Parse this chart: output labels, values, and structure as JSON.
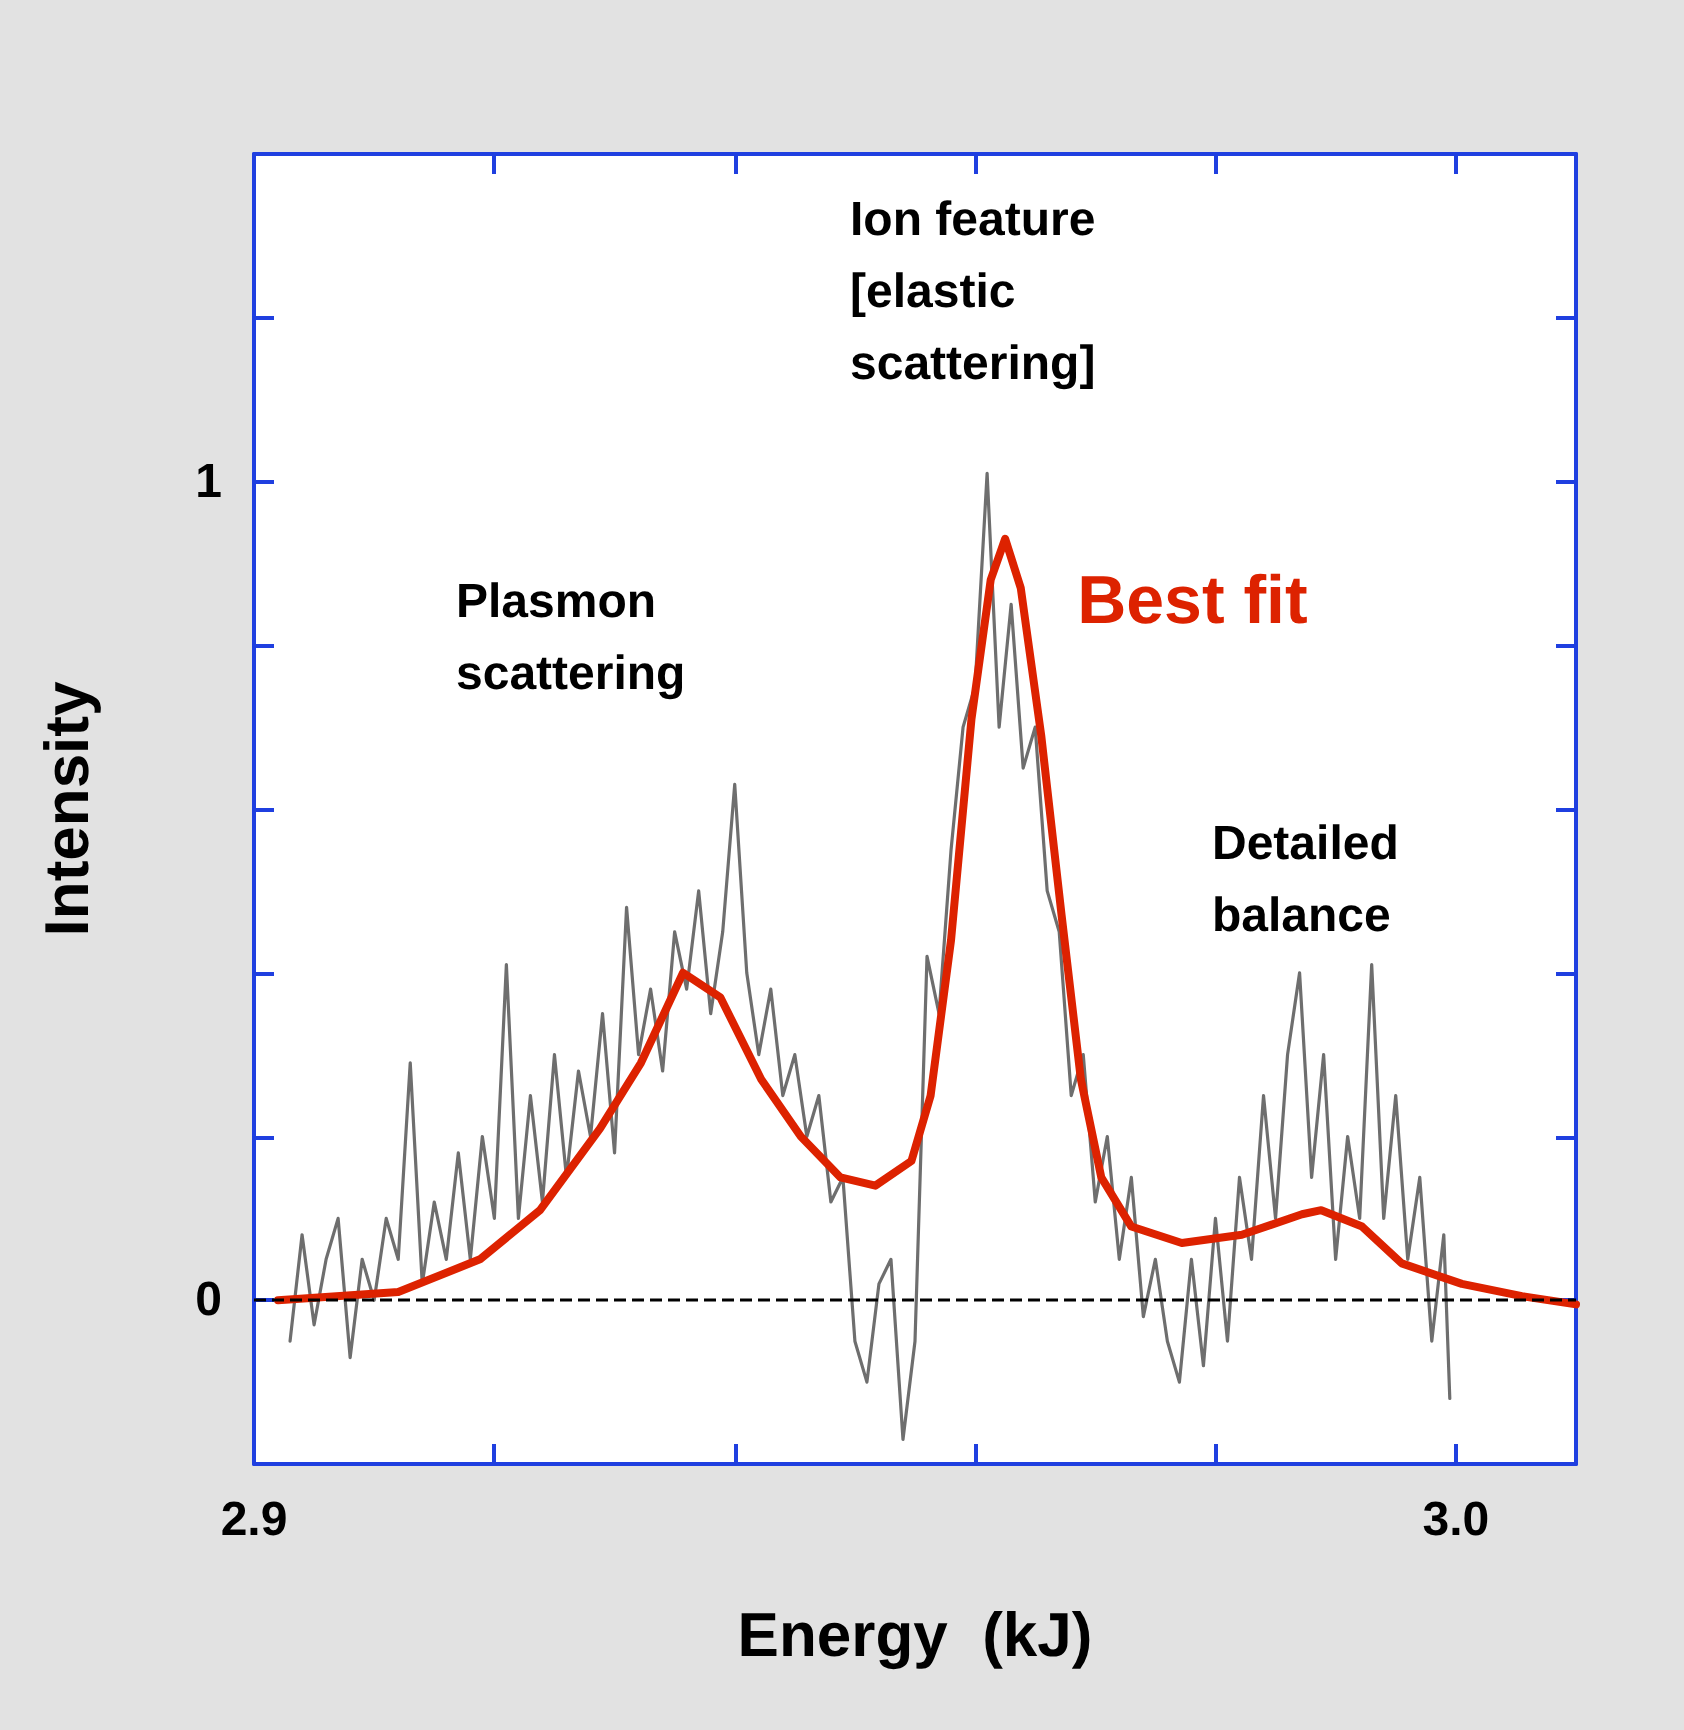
{
  "chart_data": {
    "type": "line",
    "xlabel": "Energy  (kJ)",
    "ylabel": "Intensity",
    "annotations": [
      "Ion feature [elastic scattering]",
      "Plasmon scattering",
      "Detailed balance"
    ],
    "xlim": [
      2.9,
      3.01
    ],
    "ylim": [
      -0.2,
      1.4
    ],
    "xticks": [
      2.9,
      {
        "value": 2.92,
        "label": null
      },
      {
        "value": 2.94,
        "label": null
      },
      {
        "value": 2.96,
        "label": null
      },
      {
        "value": 2.98,
        "label": null
      },
      {
        "value": 3.0,
        "label": "3.0"
      }
    ],
    "yticks": [
      {
        "value": -0.2,
        "label": null
      },
      0,
      {
        "value": 0.2,
        "label": null
      },
      {
        "value": 0.4,
        "label": null
      },
      {
        "value": 0.6,
        "label": null
      },
      {
        "value": 0.8,
        "label": null
      },
      1,
      {
        "value": 1.2,
        "label": null
      },
      {
        "value": 1.4,
        "label": null
      }
    ],
    "grid": false,
    "legend": false,
    "marker": "none",
    "line_style": "solid",
    "ref_lines": [
      {
        "axis": "y",
        "value": 0,
        "color": "#000000",
        "line_style": "dashed"
      }
    ],
    "series": [
      {
        "color": "#6e6e6e",
        "x": [
          2.903,
          2.904,
          2.905,
          2.906,
          2.907,
          2.908,
          2.909,
          2.91,
          2.911,
          2.912,
          2.913,
          2.914,
          2.915,
          2.916,
          2.917,
          2.918,
          2.919,
          2.92,
          2.921,
          2.922,
          2.923,
          2.924,
          2.925,
          2.926,
          2.927,
          2.928,
          2.929,
          2.93,
          2.931,
          2.932,
          2.933,
          2.934,
          2.935,
          2.936,
          2.937,
          2.938,
          2.939,
          2.94,
          2.941,
          2.942,
          2.943,
          2.944,
          2.945,
          2.946,
          2.947,
          2.948,
          2.949,
          2.95,
          2.951,
          2.952,
          2.953,
          2.954,
          2.955,
          2.956,
          2.957,
          2.958,
          2.959,
          2.96,
          2.961,
          2.962,
          2.963,
          2.964,
          2.965,
          2.966,
          2.967,
          2.968,
          2.969,
          2.97,
          2.971,
          2.972,
          2.973,
          2.974,
          2.975,
          2.976,
          2.977,
          2.978,
          2.979,
          2.98,
          2.981,
          2.982,
          2.983,
          2.984,
          2.985,
          2.986,
          2.987,
          2.988,
          2.989,
          2.99,
          2.991,
          2.992,
          2.993,
          2.994,
          2.995,
          2.996,
          2.997,
          2.998,
          2.999,
          2.9995
        ],
        "values": [
          -0.05,
          0.08,
          -0.03,
          0.05,
          0.1,
          -0.07,
          0.05,
          0.0,
          0.1,
          0.05,
          0.29,
          0.02,
          0.12,
          0.05,
          0.18,
          0.05,
          0.2,
          0.1,
          0.41,
          0.1,
          0.25,
          0.12,
          0.3,
          0.15,
          0.28,
          0.2,
          0.35,
          0.18,
          0.48,
          0.3,
          0.38,
          0.28,
          0.45,
          0.38,
          0.5,
          0.35,
          0.45,
          0.63,
          0.4,
          0.3,
          0.38,
          0.25,
          0.3,
          0.2,
          0.25,
          0.12,
          0.15,
          -0.05,
          -0.1,
          0.02,
          0.05,
          -0.17,
          -0.05,
          0.42,
          0.35,
          0.55,
          0.7,
          0.75,
          1.01,
          0.7,
          0.85,
          0.65,
          0.7,
          0.5,
          0.45,
          0.25,
          0.3,
          0.12,
          0.2,
          0.05,
          0.15,
          -0.02,
          0.05,
          -0.05,
          -0.1,
          0.05,
          -0.08,
          0.1,
          -0.05,
          0.15,
          0.05,
          0.25,
          0.1,
          0.3,
          0.4,
          0.15,
          0.3,
          0.05,
          0.2,
          0.1,
          0.41,
          0.1,
          0.25,
          0.05,
          0.15,
          -0.05,
          0.08,
          -0.12
        ]
      },
      {
        "name": "Best fit",
        "color": "#dd2200",
        "x": [
          2.902,
          2.912,
          2.9188,
          2.9238,
          2.9288,
          2.9322,
          2.9357,
          2.9388,
          2.9422,
          2.9455,
          2.9488,
          2.9517,
          2.9547,
          2.9563,
          2.958,
          2.9597,
          2.9613,
          2.9625,
          2.9638,
          2.9655,
          2.9672,
          2.9688,
          2.9705,
          2.973,
          2.9772,
          2.9822,
          2.9872,
          2.9888,
          2.9922,
          2.9955,
          3.0005,
          3.0055,
          3.01
        ],
        "values": [
          0.0,
          0.01,
          0.05,
          0.11,
          0.21,
          0.29,
          0.4,
          0.37,
          0.27,
          0.2,
          0.15,
          0.14,
          0.17,
          0.25,
          0.44,
          0.71,
          0.88,
          0.93,
          0.87,
          0.69,
          0.47,
          0.27,
          0.15,
          0.09,
          0.07,
          0.08,
          0.105,
          0.11,
          0.09,
          0.045,
          0.02,
          0.005,
          -0.005
        ]
      }
    ]
  }
}
